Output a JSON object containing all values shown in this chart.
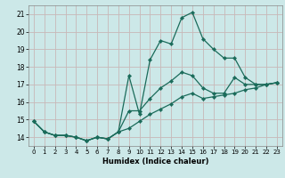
{
  "xlabel": "Humidex (Indice chaleur)",
  "bg_color": "#cce8e8",
  "grid_color": "#c8b8b8",
  "line_color": "#1a6b5a",
  "xlim": [
    -0.5,
    23.5
  ],
  "ylim": [
    13.5,
    21.5
  ],
  "xticks": [
    0,
    1,
    2,
    3,
    4,
    5,
    6,
    7,
    8,
    9,
    10,
    11,
    12,
    13,
    14,
    15,
    16,
    17,
    18,
    19,
    20,
    21,
    22,
    23
  ],
  "yticks": [
    14,
    15,
    16,
    17,
    18,
    19,
    20,
    21
  ],
  "curve1_x": [
    0,
    1,
    2,
    3,
    4,
    5,
    6,
    7,
    8,
    9,
    10,
    11,
    12,
    13,
    14,
    15,
    16,
    17,
    18,
    19,
    20,
    21,
    22,
    23
  ],
  "curve1_y": [
    14.9,
    14.3,
    14.1,
    14.1,
    14.0,
    13.8,
    14.0,
    13.9,
    14.3,
    17.5,
    15.3,
    18.4,
    19.5,
    19.3,
    20.8,
    21.1,
    19.6,
    19.0,
    18.5,
    18.5,
    17.4,
    17.0,
    17.0,
    17.1
  ],
  "curve2_x": [
    0,
    1,
    2,
    3,
    4,
    5,
    6,
    7,
    8,
    9,
    10,
    11,
    12,
    13,
    14,
    15,
    16,
    17,
    18,
    19,
    20,
    21,
    22,
    23
  ],
  "curve2_y": [
    14.9,
    14.3,
    14.1,
    14.1,
    14.0,
    13.8,
    14.0,
    13.9,
    14.3,
    15.5,
    15.5,
    16.2,
    16.8,
    17.2,
    17.7,
    17.5,
    16.8,
    16.5,
    16.5,
    17.4,
    17.0,
    17.0,
    17.0,
    17.1
  ],
  "curve3_x": [
    0,
    1,
    2,
    3,
    4,
    5,
    6,
    7,
    8,
    9,
    10,
    11,
    12,
    13,
    14,
    15,
    16,
    17,
    18,
    19,
    20,
    21,
    22,
    23
  ],
  "curve3_y": [
    14.9,
    14.3,
    14.1,
    14.1,
    14.0,
    13.8,
    14.0,
    13.9,
    14.3,
    14.5,
    14.9,
    15.3,
    15.6,
    15.9,
    16.3,
    16.5,
    16.2,
    16.3,
    16.4,
    16.5,
    16.7,
    16.8,
    17.0,
    17.1
  ]
}
